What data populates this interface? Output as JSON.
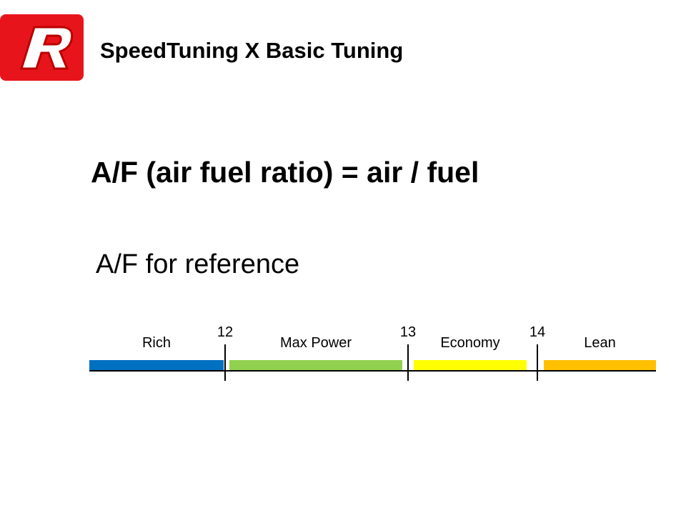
{
  "header": {
    "title": "SpeedTuning X Basic Tuning"
  },
  "heading": "A/F (air fuel ratio) = air / fuel",
  "subheading": "A/F for reference",
  "scale": {
    "zones": [
      {
        "label": "Rich",
        "color": "#0070c0"
      },
      {
        "label": "Max Power",
        "color": "#92d050"
      },
      {
        "label": "Economy",
        "color": "#ffff00"
      },
      {
        "label": "Lean",
        "color": "#ffc000"
      }
    ],
    "markers": [
      12,
      13,
      14
    ]
  }
}
